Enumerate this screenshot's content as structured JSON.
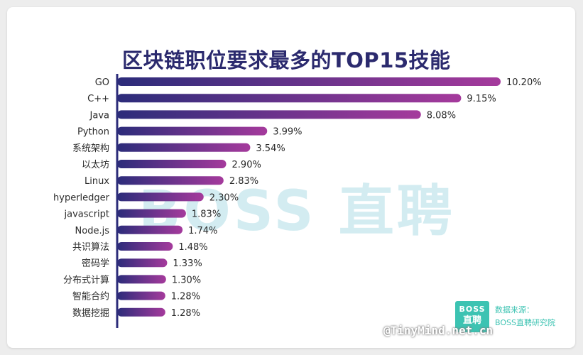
{
  "chart_data": {
    "type": "bar",
    "orientation": "horizontal",
    "title": "区块链职位要求最多的TOP15技能",
    "categories": [
      "GO",
      "C++",
      "Java",
      "Python",
      "系统架构",
      "以太坊",
      "Linux",
      "hyperledger",
      "javascript",
      "Node.js",
      "共识算法",
      "密码学",
      "分布式计算",
      "智能合约",
      "数据挖掘"
    ],
    "values": [
      10.2,
      9.15,
      8.08,
      3.99,
      3.54,
      2.9,
      2.83,
      2.3,
      1.83,
      1.74,
      1.48,
      1.33,
      1.3,
      1.28,
      1.28
    ],
    "value_labels": [
      "10.20%",
      "9.15%",
      "8.08%",
      "3.99%",
      "3.54%",
      "2.90%",
      "2.83%",
      "2.30%",
      "1.83%",
      "1.74%",
      "1.48%",
      "1.33%",
      "1.30%",
      "1.28%",
      "1.28%"
    ],
    "xlim": [
      0,
      10.2
    ],
    "grid": false,
    "bar_gradient": [
      "#2c2c7a",
      "#a53a9c"
    ]
  },
  "watermark": "BOSS 直聘",
  "logo": {
    "top": "BOSS",
    "bottom": "直聘",
    "color": "#3cc3b2"
  },
  "source": {
    "line1": "数据来源：",
    "line2": "BOSS直聘研究院"
  },
  "credit": "@TinyMind.net.cn"
}
